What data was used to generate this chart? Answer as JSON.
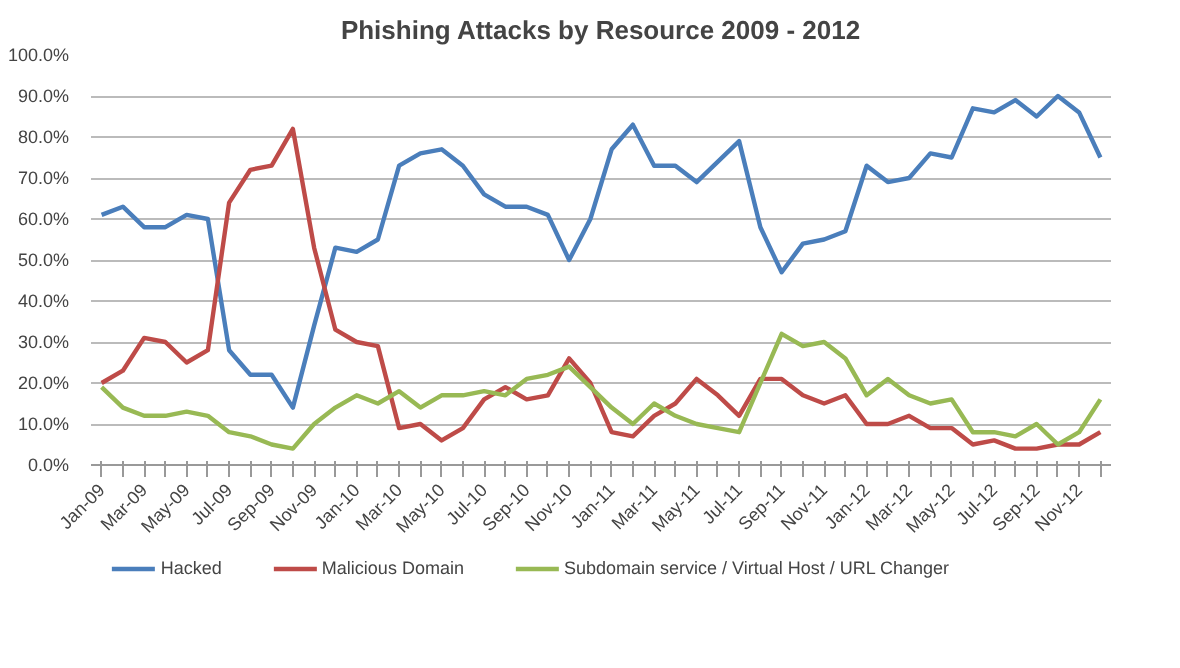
{
  "chart_data": {
    "type": "line",
    "title": "Phishing Attacks by Resource 2009 - 2012",
    "categories": [
      "Jan-09",
      null,
      "Mar-09",
      null,
      "May-09",
      null,
      "Jul-09",
      null,
      "Sep-09",
      null,
      "Nov-09",
      null,
      "Jan-10",
      null,
      "Mar-10",
      null,
      "May-10",
      null,
      "Jul-10",
      null,
      "Sep-10",
      null,
      "Nov-10",
      null,
      "Jan-11",
      null,
      "Mar-11",
      null,
      "May-11",
      null,
      "Jul-11",
      null,
      "Sep-11",
      null,
      "Nov-11",
      null,
      "Jan-12",
      null,
      "Mar-12",
      null,
      "May-12",
      null,
      "Jul-12",
      null,
      "Sep-12",
      null,
      "Nov-12",
      null
    ],
    "series": [
      {
        "name": "Hacked",
        "color": "#4a7ebb",
        "values": [
          61,
          63,
          58,
          58,
          61,
          60,
          28,
          22,
          22,
          14,
          34,
          53,
          52,
          55,
          73,
          76,
          77,
          73,
          66,
          63,
          63,
          61,
          50,
          60,
          77,
          83,
          73,
          73,
          69,
          74,
          79,
          58,
          47,
          54,
          55,
          57,
          73,
          69,
          70,
          76,
          75,
          87,
          86,
          89,
          85,
          90,
          86,
          75
        ]
      },
      {
        "name": "Malicious Domain",
        "color": "#be4b48",
        "values": [
          20,
          23,
          31,
          30,
          25,
          28,
          64,
          72,
          73,
          82,
          53,
          33,
          30,
          29,
          9,
          10,
          6,
          9,
          16,
          19,
          16,
          17,
          26,
          20,
          8,
          7,
          12,
          15,
          21,
          17,
          12,
          21,
          21,
          17,
          15,
          17,
          10,
          10,
          12,
          9,
          9,
          5,
          6,
          4,
          4,
          5,
          5,
          8
        ]
      },
      {
        "name": "Subdomain service / Virtual Host / URL Changer",
        "color": "#98b954",
        "values": [
          19,
          14,
          12,
          12,
          13,
          12,
          8,
          7,
          5,
          4,
          10,
          14,
          17,
          15,
          18,
          14,
          17,
          17,
          18,
          17,
          21,
          22,
          24,
          19,
          14,
          10,
          15,
          12,
          10,
          9,
          8,
          20,
          32,
          29,
          30,
          26,
          17,
          21,
          17,
          15,
          16,
          8,
          8,
          7,
          10,
          5,
          8,
          16
        ]
      }
    ],
    "ylim": [
      0,
      100
    ],
    "yticks": [
      {
        "value": 0,
        "label": "0.0%"
      },
      {
        "value": 10,
        "label": "10.0%"
      },
      {
        "value": 20,
        "label": "20.0%"
      },
      {
        "value": 30,
        "label": "30.0%"
      },
      {
        "value": 40,
        "label": "40.0%"
      },
      {
        "value": 50,
        "label": "50.0%"
      },
      {
        "value": 60,
        "label": "60.0%"
      },
      {
        "value": 70,
        "label": "70.0%"
      },
      {
        "value": 80,
        "label": "80.0%"
      },
      {
        "value": 90,
        "label": "90.0%"
      },
      {
        "value": 100,
        "label": "100.0%"
      }
    ],
    "grid": "y",
    "legend": "bottom",
    "marker": "none",
    "line_style": "solid"
  }
}
